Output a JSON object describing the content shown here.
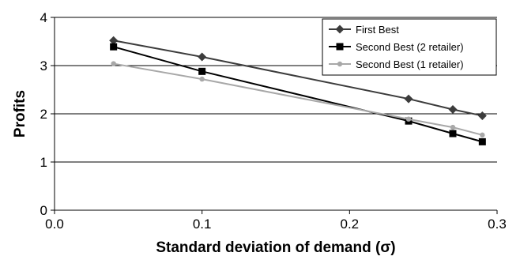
{
  "chart_data": {
    "type": "line",
    "xlabel": "Standard deviation of demand (σ)",
    "ylabel": "Profits",
    "xlim": [
      0,
      0.3
    ],
    "ylim": [
      0,
      4
    ],
    "xticks": [
      "0.0",
      "0.1",
      "0.2",
      "0.3"
    ],
    "yticks": [
      "0",
      "1",
      "2",
      "3",
      "4"
    ],
    "grid": "horizontal",
    "legend_position": "top-right",
    "x": [
      0.04,
      0.1,
      0.24,
      0.27,
      0.29
    ],
    "series": [
      {
        "name": "First Best",
        "values": [
          3.52,
          3.18,
          2.31,
          2.09,
          1.96
        ],
        "color": "#3c3c3c",
        "marker": "diamond"
      },
      {
        "name": "Second Best (2 retailer)",
        "values": [
          3.39,
          2.88,
          1.85,
          1.59,
          1.42
        ],
        "color": "#000000",
        "marker": "square"
      },
      {
        "name": "Second Best (1 retailer)",
        "values": [
          3.04,
          2.72,
          1.89,
          1.72,
          1.56
        ],
        "color": "#a8a8a8",
        "marker": "circle"
      }
    ]
  }
}
